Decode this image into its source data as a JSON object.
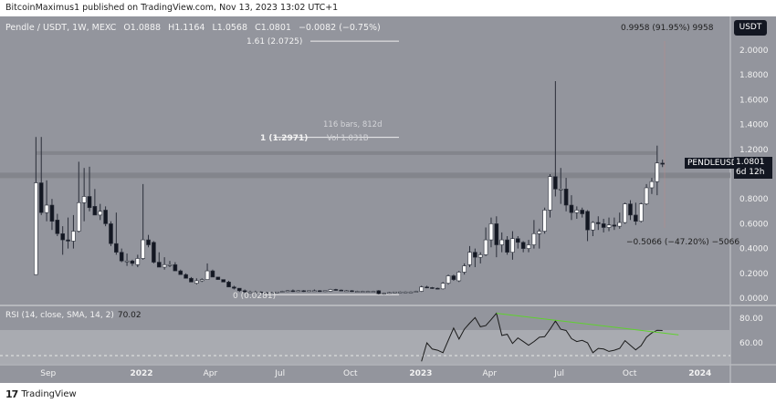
{
  "header": {
    "published": "BitcoinMaximus1 published on TradingView.com, Nov 13, 2023 13:02 UTC+1"
  },
  "legend": {
    "symbol": "Pendle / USDT, 1W, MEXC",
    "open": "O1.0888",
    "high": "H1.1164",
    "low": "L1.0568",
    "close": "C1.0801",
    "change": "−0.0082 (−0.75%)"
  },
  "price_axis": {
    "currency": "USDT",
    "ticks": [
      "2.0000",
      "1.8000",
      "1.6000",
      "1.4000",
      "1.2000",
      "0.8000",
      "0.6000",
      "0.4000",
      "0.2000",
      "0.0000"
    ],
    "last_price": "1.0801",
    "countdown": "6d 12h",
    "symbol_tag": "PENDLEUSDT"
  },
  "time_axis": {
    "ticks": [
      "Sep",
      "2022",
      "Apr",
      "Jul",
      "Oct",
      "2023",
      "Apr",
      "Jul",
      "Oct",
      "2024"
    ]
  },
  "annotations": {
    "fib_161": "1.61 (2.0725)",
    "fib_1": "1 (1.2971)",
    "fib_0": "0 (0.0281)",
    "range_bars": "116 bars, 812d",
    "range_vol": "Vol 1.031B",
    "measure_up": "0.9958 (91.95%) 9958",
    "measure_down": "−0.5066 (−47.20%) −5066"
  },
  "rsi": {
    "label": "RSI (14, close, SMA, 14, 2)",
    "value": "70.02",
    "ticks": [
      "80.00",
      "60.00"
    ]
  },
  "footer": {
    "brand": "TradingView"
  },
  "colors": {
    "pane": "#93959d",
    "up": "#ffffff",
    "down": "#131722",
    "trendline": "#5fd12e",
    "band": "#7f8188"
  },
  "chart_data": [
    {
      "type": "candlestick",
      "title": "Pendle / USDT, 1W, MEXC",
      "ylim": [
        0,
        2.1
      ],
      "log_scale": false,
      "grid": false,
      "fib_levels": [
        {
          "ratio": 1.61,
          "price": 2.0725
        },
        {
          "ratio": 1,
          "price": 1.2971
        },
        {
          "ratio": 0,
          "price": 0.0281
        }
      ],
      "horizontal_zones": [
        1.17,
        0.99
      ],
      "candles_columns": [
        "date",
        "open",
        "high",
        "low",
        "close"
      ],
      "candles": [
        [
          "2021-08-16",
          0.19,
          1.3,
          0.19,
          0.93
        ],
        [
          "2021-08-23",
          0.93,
          1.3,
          0.67,
          0.69
        ],
        [
          "2021-08-30",
          0.69,
          0.95,
          0.62,
          0.75
        ],
        [
          "2021-09-06",
          0.75,
          0.8,
          0.55,
          0.62
        ],
        [
          "2021-09-13",
          0.63,
          0.68,
          0.5,
          0.52
        ],
        [
          "2021-09-20",
          0.52,
          0.58,
          0.35,
          0.47
        ],
        [
          "2021-09-27",
          0.47,
          0.65,
          0.4,
          0.46
        ],
        [
          "2021-10-04",
          0.46,
          0.67,
          0.4,
          0.54
        ],
        [
          "2021-10-11",
          0.54,
          1.1,
          0.53,
          0.77
        ],
        [
          "2021-10-18",
          0.77,
          1.05,
          0.62,
          0.82
        ],
        [
          "2021-10-25",
          0.82,
          1.06,
          0.7,
          0.73
        ],
        [
          "2021-11-01",
          0.74,
          0.88,
          0.69,
          0.67
        ],
        [
          "2021-11-08",
          0.67,
          0.76,
          0.63,
          0.7
        ],
        [
          "2021-11-15",
          0.71,
          0.74,
          0.58,
          0.6
        ],
        [
          "2021-11-22",
          0.6,
          0.62,
          0.42,
          0.44
        ],
        [
          "2021-11-29",
          0.44,
          0.69,
          0.35,
          0.37
        ],
        [
          "2021-12-06",
          0.37,
          0.4,
          0.29,
          0.3
        ],
        [
          "2021-12-13",
          0.3,
          0.36,
          0.26,
          0.3
        ],
        [
          "2021-12-20",
          0.3,
          0.31,
          0.26,
          0.28
        ],
        [
          "2021-12-27",
          0.27,
          0.35,
          0.25,
          0.32
        ],
        [
          "2022-01-03",
          0.32,
          0.92,
          0.31,
          0.47
        ],
        [
          "2022-01-10",
          0.47,
          0.51,
          0.41,
          0.43
        ],
        [
          "2022-01-17",
          0.45,
          0.46,
          0.28,
          0.29
        ],
        [
          "2022-01-24",
          0.29,
          0.37,
          0.25,
          0.25
        ],
        [
          "2022-01-31",
          0.25,
          0.33,
          0.23,
          0.27
        ],
        [
          "2022-02-07",
          0.27,
          0.3,
          0.25,
          0.27
        ],
        [
          "2022-02-14",
          0.27,
          0.29,
          0.22,
          0.22
        ],
        [
          "2022-02-21",
          0.22,
          0.23,
          0.19,
          0.19
        ],
        [
          "2022-02-28",
          0.19,
          0.2,
          0.16,
          0.16
        ],
        [
          "2022-03-07",
          0.16,
          0.17,
          0.13,
          0.13
        ],
        [
          "2022-03-14",
          0.12,
          0.16,
          0.11,
          0.14
        ],
        [
          "2022-03-21",
          0.14,
          0.16,
          0.13,
          0.15
        ],
        [
          "2022-03-28",
          0.15,
          0.28,
          0.15,
          0.22
        ],
        [
          "2022-04-04",
          0.22,
          0.23,
          0.17,
          0.17
        ],
        [
          "2022-04-11",
          0.17,
          0.17,
          0.15,
          0.15
        ],
        [
          "2022-04-18",
          0.15,
          0.15,
          0.13,
          0.13
        ],
        [
          "2022-04-25",
          0.13,
          0.14,
          0.09,
          0.09
        ],
        [
          "2022-05-02",
          0.09,
          0.1,
          0.07,
          0.08
        ],
        [
          "2022-05-09",
          0.08,
          0.08,
          0.05,
          0.06
        ],
        [
          "2022-05-16",
          0.06,
          0.07,
          0.04,
          0.05
        ],
        [
          "2022-05-23",
          0.05,
          0.06,
          0.04,
          0.05
        ],
        [
          "2022-05-30",
          0.05,
          0.06,
          0.045,
          0.05
        ],
        [
          "2022-06-06",
          0.05,
          0.055,
          0.04,
          0.045
        ],
        [
          "2022-06-13",
          0.045,
          0.05,
          0.035,
          0.04
        ],
        [
          "2022-06-20",
          0.04,
          0.05,
          0.035,
          0.045
        ],
        [
          "2022-06-27",
          0.045,
          0.05,
          0.04,
          0.05
        ],
        [
          "2022-07-04",
          0.05,
          0.06,
          0.045,
          0.055
        ],
        [
          "2022-07-11",
          0.055,
          0.065,
          0.05,
          0.06
        ],
        [
          "2022-07-18",
          0.06,
          0.07,
          0.05,
          0.055
        ],
        [
          "2022-07-25",
          0.055,
          0.065,
          0.05,
          0.06
        ],
        [
          "2022-08-01",
          0.06,
          0.065,
          0.05,
          0.055
        ],
        [
          "2022-08-08",
          0.055,
          0.06,
          0.05,
          0.06
        ],
        [
          "2022-08-15",
          0.06,
          0.07,
          0.055,
          0.06
        ],
        [
          "2022-08-22",
          0.06,
          0.065,
          0.05,
          0.055
        ],
        [
          "2022-08-29",
          0.055,
          0.06,
          0.05,
          0.06
        ],
        [
          "2022-09-05",
          0.055,
          0.075,
          0.05,
          0.07
        ],
        [
          "2022-09-12",
          0.07,
          0.075,
          0.06,
          0.065
        ],
        [
          "2022-09-19",
          0.065,
          0.07,
          0.06,
          0.06
        ],
        [
          "2022-09-26",
          0.06,
          0.065,
          0.055,
          0.06
        ],
        [
          "2022-10-03",
          0.06,
          0.065,
          0.05,
          0.055
        ],
        [
          "2022-10-10",
          0.055,
          0.06,
          0.05,
          0.055
        ],
        [
          "2022-10-17",
          0.055,
          0.06,
          0.05,
          0.055
        ],
        [
          "2022-10-24",
          0.055,
          0.06,
          0.05,
          0.055
        ],
        [
          "2022-10-31",
          0.055,
          0.06,
          0.05,
          0.055
        ],
        [
          "2022-11-07",
          0.06,
          0.065,
          0.03,
          0.035
        ],
        [
          "2022-11-14",
          0.035,
          0.045,
          0.0281,
          0.04
        ],
        [
          "2022-11-21",
          0.04,
          0.05,
          0.035,
          0.045
        ],
        [
          "2022-11-28",
          0.045,
          0.05,
          0.04,
          0.05
        ],
        [
          "2022-12-05",
          0.05,
          0.055,
          0.045,
          0.05
        ],
        [
          "2022-12-12",
          0.05,
          0.055,
          0.045,
          0.05
        ],
        [
          "2022-12-19",
          0.05,
          0.055,
          0.045,
          0.05
        ],
        [
          "2022-12-26",
          0.05,
          0.06,
          0.045,
          0.055
        ],
        [
          "2023-01-02",
          0.055,
          0.1,
          0.05,
          0.09
        ],
        [
          "2023-01-09",
          0.09,
          0.1,
          0.08,
          0.085
        ],
        [
          "2023-01-16",
          0.085,
          0.09,
          0.075,
          0.08
        ],
        [
          "2023-01-23",
          0.08,
          0.085,
          0.07,
          0.075
        ],
        [
          "2023-01-30",
          0.075,
          0.13,
          0.07,
          0.12
        ],
        [
          "2023-02-06",
          0.12,
          0.19,
          0.11,
          0.18
        ],
        [
          "2023-02-13",
          0.18,
          0.19,
          0.14,
          0.15
        ],
        [
          "2023-02-20",
          0.14,
          0.22,
          0.13,
          0.21
        ],
        [
          "2023-02-27",
          0.21,
          0.28,
          0.19,
          0.26
        ],
        [
          "2023-03-06",
          0.27,
          0.42,
          0.25,
          0.37
        ],
        [
          "2023-03-13",
          0.37,
          0.4,
          0.25,
          0.33
        ],
        [
          "2023-03-20",
          0.33,
          0.37,
          0.28,
          0.35
        ],
        [
          "2023-03-27",
          0.35,
          0.57,
          0.34,
          0.47
        ],
        [
          "2023-04-03",
          0.47,
          0.65,
          0.41,
          0.6
        ],
        [
          "2023-04-10",
          0.6,
          0.66,
          0.33,
          0.43
        ],
        [
          "2023-04-17",
          0.43,
          0.53,
          0.37,
          0.47
        ],
        [
          "2023-04-24",
          0.47,
          0.5,
          0.35,
          0.37
        ],
        [
          "2023-05-01",
          0.37,
          0.54,
          0.31,
          0.48
        ],
        [
          "2023-05-08",
          0.48,
          0.5,
          0.4,
          0.45
        ],
        [
          "2023-05-15",
          0.45,
          0.46,
          0.37,
          0.4
        ],
        [
          "2023-05-22",
          0.4,
          0.47,
          0.37,
          0.43
        ],
        [
          "2023-05-29",
          0.43,
          0.63,
          0.4,
          0.52
        ],
        [
          "2023-06-05",
          0.52,
          0.56,
          0.4,
          0.54
        ],
        [
          "2023-06-12",
          0.54,
          0.73,
          0.52,
          0.71
        ],
        [
          "2023-06-19",
          0.71,
          1.0,
          0.65,
          0.98
        ],
        [
          "2023-06-26",
          0.98,
          1.75,
          0.82,
          0.88
        ],
        [
          "2023-07-03",
          0.88,
          1.05,
          0.76,
          0.88
        ],
        [
          "2023-07-10",
          0.88,
          0.97,
          0.7,
          0.75
        ],
        [
          "2023-07-17",
          0.75,
          0.83,
          0.63,
          0.69
        ],
        [
          "2023-07-24",
          0.69,
          0.74,
          0.64,
          0.71
        ],
        [
          "2023-07-31",
          0.71,
          0.73,
          0.65,
          0.68
        ],
        [
          "2023-08-07",
          0.7,
          0.71,
          0.46,
          0.55
        ],
        [
          "2023-08-14",
          0.55,
          0.62,
          0.5,
          0.61
        ],
        [
          "2023-08-21",
          0.61,
          0.66,
          0.55,
          0.6
        ],
        [
          "2023-08-28",
          0.6,
          0.64,
          0.53,
          0.57
        ],
        [
          "2023-09-04",
          0.57,
          0.65,
          0.54,
          0.59
        ],
        [
          "2023-09-11",
          0.59,
          0.65,
          0.55,
          0.58
        ],
        [
          "2023-09-18",
          0.58,
          0.69,
          0.56,
          0.61
        ],
        [
          "2023-09-25",
          0.61,
          0.77,
          0.6,
          0.76
        ],
        [
          "2023-10-02",
          0.76,
          0.79,
          0.63,
          0.67
        ],
        [
          "2023-10-09",
          0.67,
          0.77,
          0.59,
          0.62
        ],
        [
          "2023-10-16",
          0.62,
          0.77,
          0.61,
          0.76
        ],
        [
          "2023-10-23",
          0.76,
          0.92,
          0.75,
          0.89
        ],
        [
          "2023-10-30",
          0.89,
          0.97,
          0.84,
          0.94
        ],
        [
          "2023-11-06",
          0.94,
          1.23,
          0.83,
          1.09
        ],
        [
          "2023-11-13",
          1.0888,
          1.1164,
          1.0568,
          1.0801
        ]
      ]
    },
    {
      "type": "line",
      "title": "RSI (14, close, SMA, 14, 2)",
      "ylim": [
        44,
        88
      ],
      "bands": {
        "upper": 70,
        "middle_dashed": 50
      },
      "series": [
        {
          "name": "RSI",
          "points": [
            [
              "2023-01-02",
              45
            ],
            [
              "2023-01-09",
              60
            ],
            [
              "2023-01-16",
              55
            ],
            [
              "2023-01-23",
              54
            ],
            [
              "2023-01-30",
              52
            ],
            [
              "2023-02-06",
              62
            ],
            [
              "2023-02-13",
              72
            ],
            [
              "2023-02-20",
              63
            ],
            [
              "2023-02-27",
              71
            ],
            [
              "2023-03-06",
              76
            ],
            [
              "2023-03-13",
              80.5
            ],
            [
              "2023-03-20",
              73
            ],
            [
              "2023-03-27",
              74
            ],
            [
              "2023-04-03",
              79
            ],
            [
              "2023-04-10",
              84
            ],
            [
              "2023-04-17",
              66
            ],
            [
              "2023-04-24",
              67
            ],
            [
              "2023-05-01",
              59.5
            ],
            [
              "2023-05-08",
              64
            ],
            [
              "2023-05-15",
              61
            ],
            [
              "2023-05-22",
              58
            ],
            [
              "2023-05-29",
              61
            ],
            [
              "2023-06-05",
              64.5
            ],
            [
              "2023-06-12",
              65
            ],
            [
              "2023-06-19",
              71
            ],
            [
              "2023-06-26",
              77.7
            ],
            [
              "2023-07-03",
              71
            ],
            [
              "2023-07-10",
              70
            ],
            [
              "2023-07-17",
              63.4
            ],
            [
              "2023-07-24",
              61
            ],
            [
              "2023-07-31",
              62
            ],
            [
              "2023-08-07",
              60
            ],
            [
              "2023-08-14",
              52
            ],
            [
              "2023-08-21",
              55.5
            ],
            [
              "2023-08-28",
              55
            ],
            [
              "2023-09-04",
              53
            ],
            [
              "2023-09-11",
              54
            ],
            [
              "2023-09-18",
              55.5
            ],
            [
              "2023-09-25",
              61.8
            ],
            [
              "2023-10-02",
              58
            ],
            [
              "2023-10-09",
              54.3
            ],
            [
              "2023-10-16",
              57.7
            ],
            [
              "2023-10-23",
              64.5
            ],
            [
              "2023-10-30",
              68
            ],
            [
              "2023-11-06",
              70.2
            ],
            [
              "2023-11-13",
              70.02
            ]
          ]
        }
      ],
      "trendline": [
        [
          "2023-04-10",
          84
        ],
        [
          "2023-12-04",
          66.5
        ]
      ]
    }
  ]
}
